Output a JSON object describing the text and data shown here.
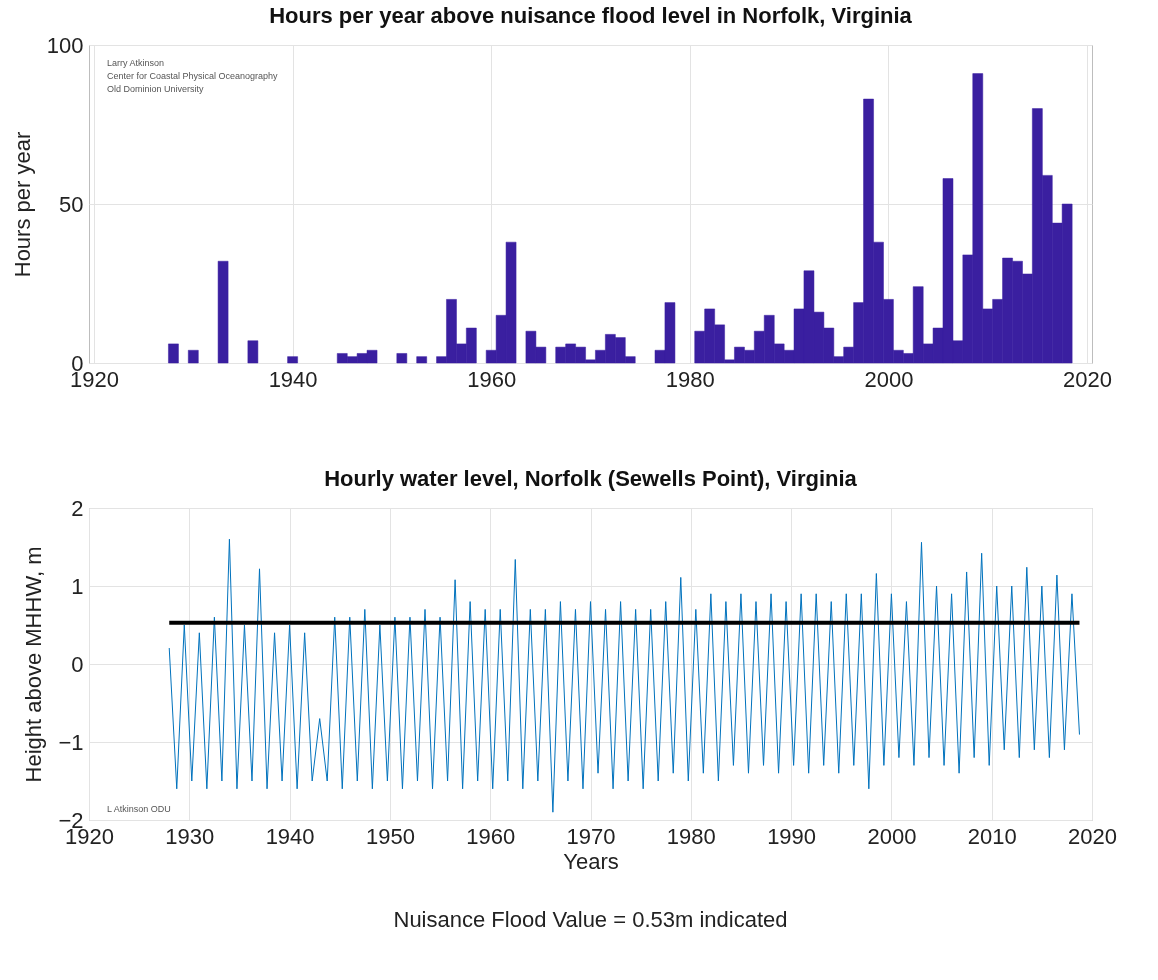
{
  "chart_data": [
    {
      "type": "bar",
      "title": "Hours per year above nuisance flood level in Norfolk, Virginia",
      "ylabel": "Hours per year",
      "annotations": [
        "Larry Atkinson",
        "Center for Coastal Physical Oceanography",
        "Old Dominion University"
      ],
      "x": [
        1928,
        1930,
        1933,
        1936,
        1940,
        1945,
        1946,
        1947,
        1948,
        1951,
        1953,
        1955,
        1956,
        1957,
        1958,
        1960,
        1961,
        1962,
        1964,
        1965,
        1967,
        1968,
        1969,
        1970,
        1971,
        1972,
        1973,
        1974,
        1977,
        1978,
        1981,
        1982,
        1983,
        1984,
        1985,
        1986,
        1987,
        1988,
        1989,
        1990,
        1991,
        1992,
        1993,
        1994,
        1995,
        1996,
        1997,
        1998,
        1999,
        2000,
        2001,
        2002,
        2003,
        2004,
        2005,
        2006,
        2007,
        2008,
        2009,
        2010,
        2011,
        2012,
        2013,
        2014,
        2015,
        2016,
        2017,
        2018
      ],
      "values": [
        6,
        4,
        32,
        7,
        2,
        3,
        2,
        3,
        4,
        3,
        2,
        2,
        20,
        6,
        11,
        4,
        15,
        38,
        10,
        5,
        5,
        6,
        5,
        1,
        4,
        9,
        8,
        2,
        4,
        19,
        10,
        17,
        12,
        1,
        5,
        4,
        10,
        15,
        6,
        4,
        17,
        29,
        16,
        11,
        2,
        5,
        19,
        83,
        38,
        20,
        4,
        3,
        24,
        6,
        11,
        58,
        7,
        34,
        91,
        17,
        20,
        33,
        32,
        28,
        80,
        59,
        44,
        50
      ],
      "color": "#3a1fa0",
      "xlim": [
        1920,
        2020
      ],
      "xticks": [
        1920,
        1940,
        1960,
        1980,
        2000,
        2020
      ],
      "ylim": [
        0,
        100
      ],
      "yticks": [
        0,
        50,
        100
      ],
      "grid": true
    },
    {
      "type": "line",
      "title": "Hourly water level, Norfolk (Sewells Point), Virginia",
      "xlabel": "Years",
      "ylabel": "Height above MHHW, m",
      "annotations": [
        "L Atkinson ODU",
        "Nuisance Flood Value = 0.53m indicated"
      ],
      "x": [
        1928,
        1928.75,
        1929.5,
        1930.25,
        1931,
        1931.75,
        1932.5,
        1933.25,
        1934,
        1934.75,
        1935.5,
        1936.25,
        1937,
        1937.75,
        1938.5,
        1939.25,
        1940,
        1940.75,
        1941.5,
        1942.25,
        1943,
        1943.75,
        1944.5,
        1945.25,
        1946,
        1946.75,
        1947.5,
        1948.25,
        1949,
        1949.75,
        1950.5,
        1951.25,
        1952,
        1952.75,
        1953.5,
        1954.25,
        1955,
        1955.75,
        1956.5,
        1957.25,
        1958,
        1958.75,
        1959.5,
        1960.25,
        1961,
        1961.75,
        1962.5,
        1963.25,
        1964,
        1964.75,
        1965.5,
        1966.25,
        1967,
        1967.75,
        1968.5,
        1969.25,
        1970,
        1970.75,
        1971.5,
        1972.25,
        1973,
        1973.75,
        1974.5,
        1975.25,
        1976,
        1976.75,
        1977.5,
        1978.25,
        1979,
        1979.75,
        1980.5,
        1981.25,
        1982,
        1982.75,
        1983.5,
        1984.25,
        1985,
        1985.75,
        1986.5,
        1987.25,
        1988,
        1988.75,
        1989.5,
        1990.25,
        1991,
        1991.75,
        1992.5,
        1993.25,
        1994,
        1994.75,
        1995.5,
        1996.25,
        1997,
        1997.75,
        1998.5,
        1999.25,
        2000,
        2000.75,
        2001.5,
        2002.25,
        2003,
        2003.75,
        2004.5,
        2005.25,
        2006,
        2006.75,
        2007.5,
        2008.25,
        2009,
        2009.75,
        2010.5,
        2011.25,
        2012,
        2012.75,
        2013.5,
        2014.25,
        2015,
        2015.75,
        2016.5,
        2017.25,
        2018,
        2018.75
      ],
      "values": [
        0.2,
        -1.6,
        0.5,
        -1.5,
        0.4,
        -1.6,
        0.6,
        -1.5,
        1.6,
        -1.6,
        0.5,
        -1.5,
        1.22,
        -1.6,
        0.4,
        -1.5,
        0.5,
        -1.6,
        0.4,
        -1.5,
        -0.7,
        -1.5,
        0.6,
        -1.6,
        0.6,
        -1.5,
        0.7,
        -1.6,
        0.5,
        -1.5,
        0.6,
        -1.6,
        0.6,
        -1.5,
        0.7,
        -1.6,
        0.6,
        -1.5,
        1.08,
        -1.6,
        0.8,
        -1.5,
        0.7,
        -1.6,
        0.7,
        -1.5,
        1.34,
        -1.6,
        0.7,
        -1.5,
        0.7,
        -1.9,
        0.8,
        -1.5,
        0.7,
        -1.6,
        0.8,
        -1.4,
        0.7,
        -1.6,
        0.8,
        -1.5,
        0.7,
        -1.6,
        0.7,
        -1.5,
        0.8,
        -1.4,
        1.11,
        -1.5,
        0.7,
        -1.4,
        0.9,
        -1.5,
        0.8,
        -1.3,
        0.9,
        -1.4,
        0.8,
        -1.3,
        0.9,
        -1.4,
        0.8,
        -1.3,
        0.9,
        -1.4,
        0.9,
        -1.3,
        0.8,
        -1.4,
        0.9,
        -1.3,
        0.9,
        -1.6,
        1.16,
        -1.3,
        0.9,
        -1.2,
        0.8,
        -1.3,
        1.56,
        -1.2,
        1.0,
        -1.3,
        0.9,
        -1.4,
        1.18,
        -1.2,
        1.42,
        -1.3,
        1.0,
        -1.1,
        1.0,
        -1.2,
        1.24,
        -1.1,
        1.0,
        -1.2,
        1.14,
        -1.1,
        0.9,
        -0.9
      ],
      "color": "#0072bd",
      "ref_lines": [
        {
          "axis": "y",
          "value": 0.53,
          "color": "#000000"
        }
      ],
      "xlim": [
        1920,
        2020
      ],
      "xticks": [
        1920,
        1930,
        1940,
        1950,
        1960,
        1970,
        1980,
        1990,
        2000,
        2010,
        2020
      ],
      "ylim": [
        -2,
        2
      ],
      "yticks": [
        -2,
        -1,
        0,
        1,
        2
      ],
      "grid": true
    }
  ]
}
